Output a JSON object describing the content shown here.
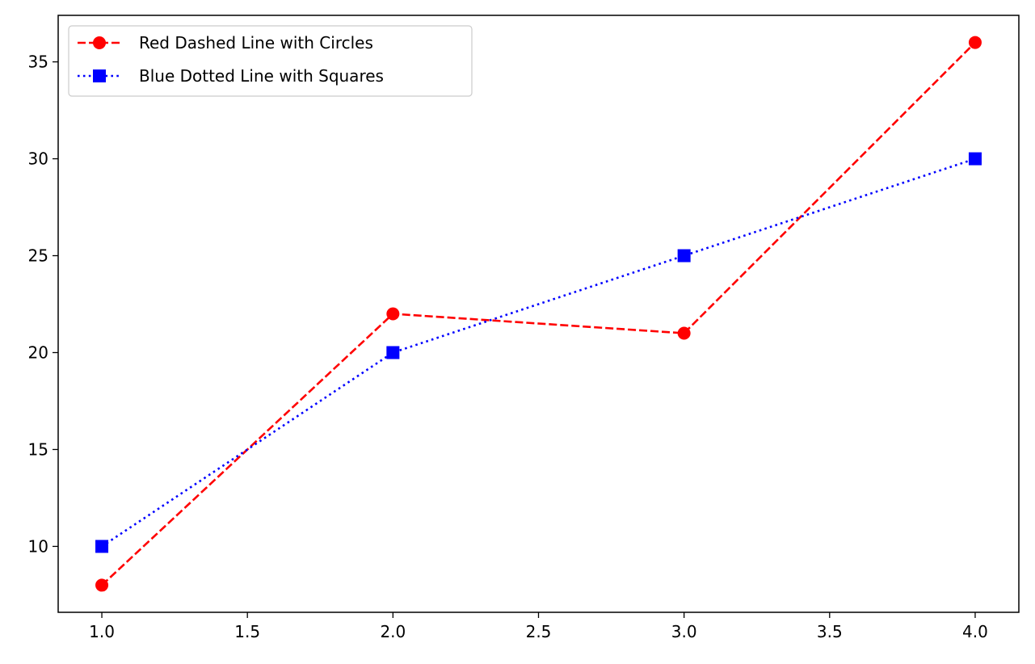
{
  "chart_data": {
    "type": "line",
    "title": "",
    "xlabel": "",
    "ylabel": "",
    "xlim": [
      0.85,
      4.15
    ],
    "ylim": [
      6.6,
      37.4
    ],
    "x_ticks": [
      1.0,
      1.5,
      2.0,
      2.5,
      3.0,
      3.5,
      4.0
    ],
    "x_tick_labels": [
      "1.0",
      "1.5",
      "2.0",
      "2.5",
      "3.0",
      "3.5",
      "4.0"
    ],
    "y_ticks": [
      10,
      15,
      20,
      25,
      30,
      35
    ],
    "y_tick_labels": [
      "10",
      "15",
      "20",
      "25",
      "30",
      "35"
    ],
    "grid": false,
    "legend_position": "upper-left",
    "series": [
      {
        "name": "Red Dashed Line with Circles",
        "x": [
          1,
          2,
          3,
          4
        ],
        "y": [
          8,
          22,
          21,
          36
        ],
        "color": "#ff0000",
        "line_style": "dashed",
        "marker": "circle"
      },
      {
        "name": "Blue Dotted Line with Squares",
        "x": [
          1,
          2,
          3,
          4
        ],
        "y": [
          10,
          20,
          25,
          30
        ],
        "color": "#0000ff",
        "line_style": "dotted",
        "marker": "square"
      }
    ]
  }
}
